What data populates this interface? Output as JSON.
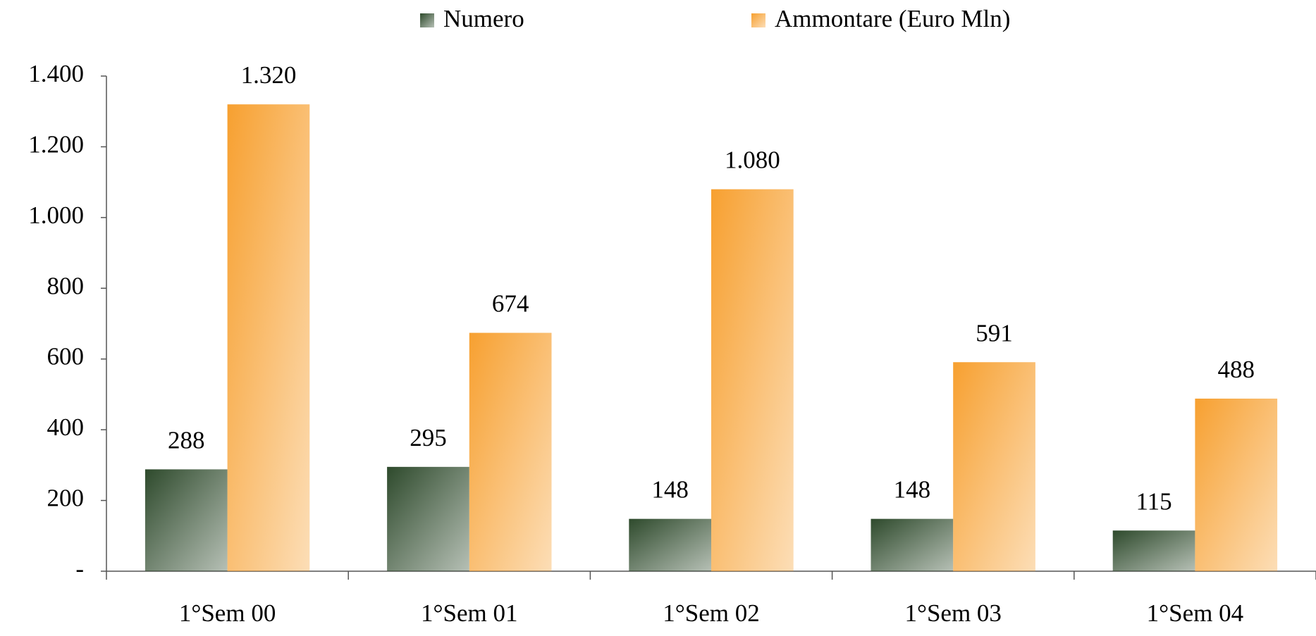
{
  "chart_data": {
    "type": "bar",
    "categories": [
      "1°Sem 00",
      "1°Sem 01",
      "1°Sem 02",
      "1°Sem 03",
      "1°Sem 04"
    ],
    "series": [
      {
        "name": "Numero",
        "color": "#2e4a2c",
        "values": [
          288,
          295,
          148,
          148,
          115
        ]
      },
      {
        "name": "Ammontare (Euro Mln)",
        "color": "#f7a030",
        "values": [
          1320,
          674,
          1080,
          591,
          488
        ],
        "value_labels": [
          "1.320",
          "674",
          "1.080",
          "591",
          "488"
        ]
      }
    ],
    "ylim": [
      0,
      1400
    ],
    "yticks": [
      {
        "value": 0,
        "label": "-"
      },
      200,
      400,
      600,
      800,
      {
        "value": 1000,
        "label": "1.000"
      },
      {
        "value": 1200,
        "label": "1.200"
      },
      {
        "value": 1400,
        "label": "1.400"
      }
    ],
    "legend": "top"
  }
}
